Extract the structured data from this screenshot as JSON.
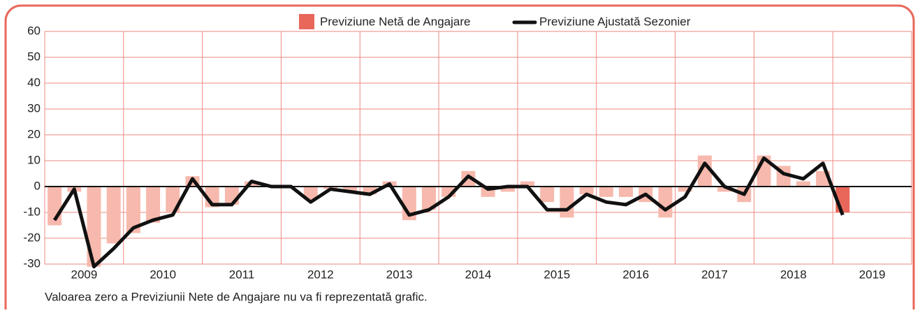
{
  "chart_data": {
    "type": "bar_line",
    "legend": [
      "Previziune Netă de Angajare",
      "Previziune Ajustată Sezonier"
    ],
    "footnote": "Valoarea zero a Previziunii Nete de Angajare nu va fi reprezentată grafic.",
    "years": [
      "2009",
      "2010",
      "2011",
      "2012",
      "2013",
      "2014",
      "2015",
      "2016",
      "2017",
      "2018",
      "2019"
    ],
    "series": [
      {
        "name": "Previziune Netă de Angajare",
        "color": "#f7b9ad",
        "highlight_color": "#e8675a",
        "values": [
          -15,
          -2,
          -31,
          -22,
          -18,
          -14,
          -10,
          4,
          -8,
          -7,
          2,
          0,
          0,
          -5,
          -1,
          -2,
          -3,
          2,
          -13,
          -9,
          -4,
          6,
          -4,
          -2,
          2,
          -6,
          -12,
          -3,
          -4,
          -4,
          -6,
          -12,
          -2,
          12,
          -2,
          -6,
          12,
          8,
          2,
          6,
          -10
        ]
      },
      {
        "name": "Previziune Ajustată Sezonier",
        "color": "#111111",
        "values": [
          -13,
          -1,
          -31,
          -24,
          -16,
          -13,
          -11,
          3,
          -7,
          -7,
          2,
          0,
          0,
          -6,
          -1,
          -2,
          -3,
          1,
          -11,
          -9,
          -4,
          4,
          -1,
          0,
          0,
          -9,
          -9,
          -3,
          -6,
          -7,
          -3,
          -9,
          -4,
          9,
          0,
          -3,
          11,
          5,
          3,
          9,
          -11
        ]
      }
    ],
    "ylim": [
      -30,
      60
    ],
    "yticks": [
      -30,
      -20,
      -10,
      0,
      10,
      20,
      30,
      40,
      50,
      60
    ],
    "grid": true,
    "frame_color": "#e8675a",
    "grid_color": "#ee8a80"
  }
}
